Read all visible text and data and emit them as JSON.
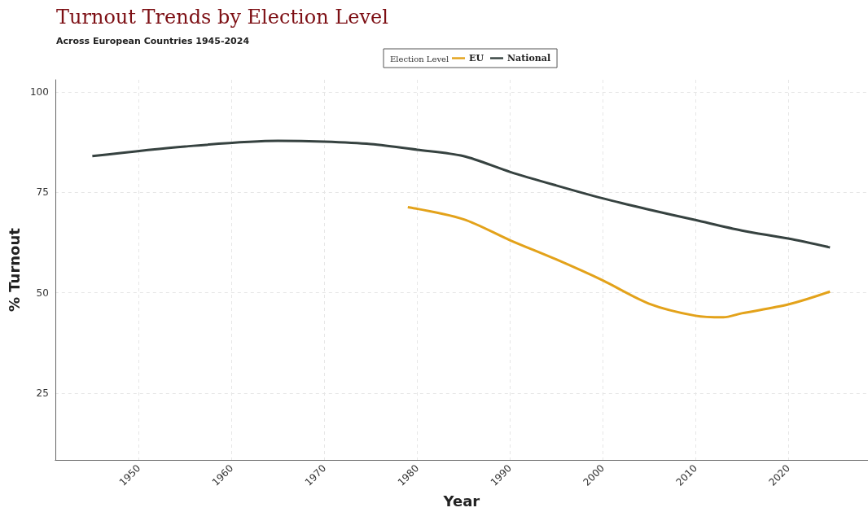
{
  "chart_data": {
    "type": "line",
    "title": "Turnout Trends by Election Level",
    "subtitle": "Across European Countries 1945-2024",
    "xlabel": "Year",
    "ylabel": "% Turnout",
    "legend_title": "Election Level",
    "legend": "top",
    "grid": true,
    "marker": "none",
    "line_style": "solid",
    "xlim": [
      1941,
      2028.6
    ],
    "xticks": [
      1950,
      1960,
      1970,
      1980,
      1990,
      2000,
      2010,
      2020
    ],
    "ylim": [
      8.4,
      103
    ],
    "yticks": [
      25,
      50,
      75,
      100
    ],
    "series": [
      {
        "name": "EU",
        "color": "#e3a21a",
        "x": [
          1979,
          1985,
          1990,
          1995,
          2000,
          2005,
          2010,
          2013,
          2015,
          2020,
          2024.5
        ],
        "values": [
          71.3,
          68.3,
          63.1,
          58.3,
          53.1,
          47.3,
          44.3,
          43.9,
          44.9,
          47.1,
          50.3
        ]
      },
      {
        "name": "National",
        "color": "#364240",
        "x": [
          1945,
          1955,
          1965,
          1970,
          1975,
          1980,
          1985,
          1990,
          1995,
          2000,
          2005,
          2010,
          2015,
          2020,
          2024.5
        ],
        "values": [
          84.0,
          86.4,
          87.8,
          87.6,
          87.0,
          85.6,
          84.0,
          80.1,
          76.7,
          73.5,
          70.7,
          68.1,
          65.5,
          63.5,
          61.3
        ]
      }
    ]
  }
}
